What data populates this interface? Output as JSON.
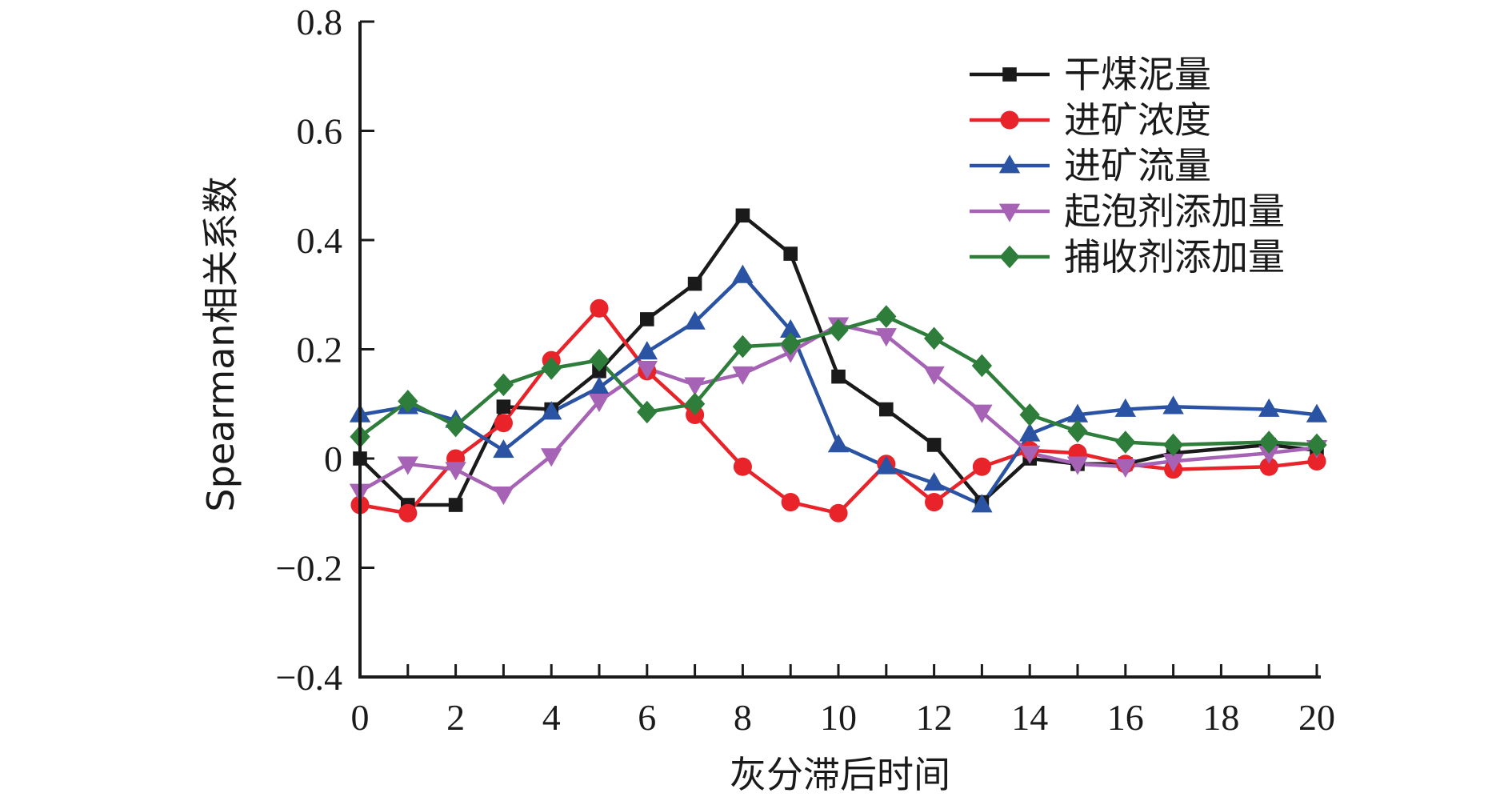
{
  "chart_data": {
    "type": "line",
    "title": "",
    "xlabel": "灰分滞后时间",
    "ylabel": "Spearman相关系数",
    "xlim": [
      0,
      20
    ],
    "ylim": [
      -0.4,
      0.8
    ],
    "x_ticks": [
      0,
      2,
      4,
      6,
      8,
      10,
      12,
      14,
      16,
      18,
      20
    ],
    "y_ticks": [
      -0.4,
      -0.2,
      0,
      0.2,
      0.4,
      0.6,
      0.8
    ],
    "x_tick_labels": [
      "0",
      "2",
      "4",
      "6",
      "8",
      "10",
      "12",
      "14",
      "16",
      "18",
      "20"
    ],
    "y_tick_labels": [
      "−0.4",
      "−0.2",
      "0",
      "0.2",
      "0.4",
      "0.6",
      "0.8"
    ],
    "grid": false,
    "legend_position": "top-right",
    "series": [
      {
        "name": "干煤泥量",
        "color": "#1a1a1a",
        "marker": "square",
        "points": [
          [
            0,
            0.0
          ],
          [
            1,
            -0.085
          ],
          [
            2,
            -0.085
          ],
          [
            3,
            0.095
          ],
          [
            4,
            0.09
          ],
          [
            5,
            0.16
          ],
          [
            6,
            0.255
          ],
          [
            7,
            0.32
          ],
          [
            8,
            0.445
          ],
          [
            9,
            0.375
          ],
          [
            10,
            0.15
          ],
          [
            11,
            0.09
          ],
          [
            12,
            0.025
          ],
          [
            13,
            -0.08
          ],
          [
            14,
            0.0
          ],
          [
            15,
            -0.01
          ],
          [
            16,
            -0.01
          ],
          [
            17,
            0.01
          ],
          [
            19,
            0.025
          ],
          [
            20,
            0.015
          ]
        ]
      },
      {
        "name": "进矿浓度",
        "color": "#e8232a",
        "marker": "circle",
        "points": [
          [
            0,
            -0.085
          ],
          [
            1,
            -0.1
          ],
          [
            2,
            0.0
          ],
          [
            3,
            0.065
          ],
          [
            4,
            0.18
          ],
          [
            5,
            0.275
          ],
          [
            6,
            0.16
          ],
          [
            7,
            0.08
          ],
          [
            8,
            -0.015
          ],
          [
            9,
            -0.08
          ],
          [
            10,
            -0.1
          ],
          [
            11,
            -0.01
          ],
          [
            12,
            -0.08
          ],
          [
            13,
            -0.015
          ],
          [
            14,
            0.015
          ],
          [
            15,
            0.01
          ],
          [
            16,
            -0.01
          ],
          [
            17,
            -0.02
          ],
          [
            19,
            -0.015
          ],
          [
            20,
            -0.005
          ]
        ]
      },
      {
        "name": "进矿流量",
        "color": "#2a53a3",
        "marker": "triangle-up",
        "points": [
          [
            0,
            0.08
          ],
          [
            1,
            0.095
          ],
          [
            2,
            0.07
          ],
          [
            3,
            0.015
          ],
          [
            4,
            0.085
          ],
          [
            5,
            0.13
          ],
          [
            6,
            0.195
          ],
          [
            7,
            0.25
          ],
          [
            8,
            0.335
          ],
          [
            9,
            0.235
          ],
          [
            10,
            0.025
          ],
          [
            11,
            -0.015
          ],
          [
            12,
            -0.045
          ],
          [
            13,
            -0.085
          ],
          [
            14,
            0.045
          ],
          [
            15,
            0.08
          ],
          [
            16,
            0.09
          ],
          [
            17,
            0.095
          ],
          [
            19,
            0.09
          ],
          [
            20,
            0.08
          ]
        ]
      },
      {
        "name": "起泡剂添加量",
        "color": "#a662b5",
        "marker": "triangle-down",
        "points": [
          [
            0,
            -0.06
          ],
          [
            1,
            -0.01
          ],
          [
            2,
            -0.02
          ],
          [
            3,
            -0.065
          ],
          [
            4,
            0.005
          ],
          [
            5,
            0.105
          ],
          [
            6,
            0.165
          ],
          [
            7,
            0.135
          ],
          [
            8,
            0.155
          ],
          [
            9,
            0.195
          ],
          [
            10,
            0.245
          ],
          [
            11,
            0.225
          ],
          [
            12,
            0.155
          ],
          [
            13,
            0.085
          ],
          [
            14,
            0.01
          ],
          [
            15,
            -0.01
          ],
          [
            16,
            -0.015
          ],
          [
            17,
            -0.005
          ],
          [
            19,
            0.01
          ],
          [
            20,
            0.02
          ]
        ]
      },
      {
        "name": "捕收剂添加量",
        "color": "#2e7d3b",
        "marker": "diamond",
        "points": [
          [
            0,
            0.04
          ],
          [
            1,
            0.105
          ],
          [
            2,
            0.06
          ],
          [
            3,
            0.135
          ],
          [
            4,
            0.165
          ],
          [
            5,
            0.18
          ],
          [
            6,
            0.085
          ],
          [
            7,
            0.1
          ],
          [
            8,
            0.205
          ],
          [
            9,
            0.21
          ],
          [
            10,
            0.235
          ],
          [
            11,
            0.26
          ],
          [
            12,
            0.22
          ],
          [
            13,
            0.17
          ],
          [
            14,
            0.08
          ],
          [
            15,
            0.05
          ],
          [
            16,
            0.03
          ],
          [
            17,
            0.025
          ],
          [
            19,
            0.03
          ],
          [
            20,
            0.025
          ]
        ]
      }
    ]
  }
}
